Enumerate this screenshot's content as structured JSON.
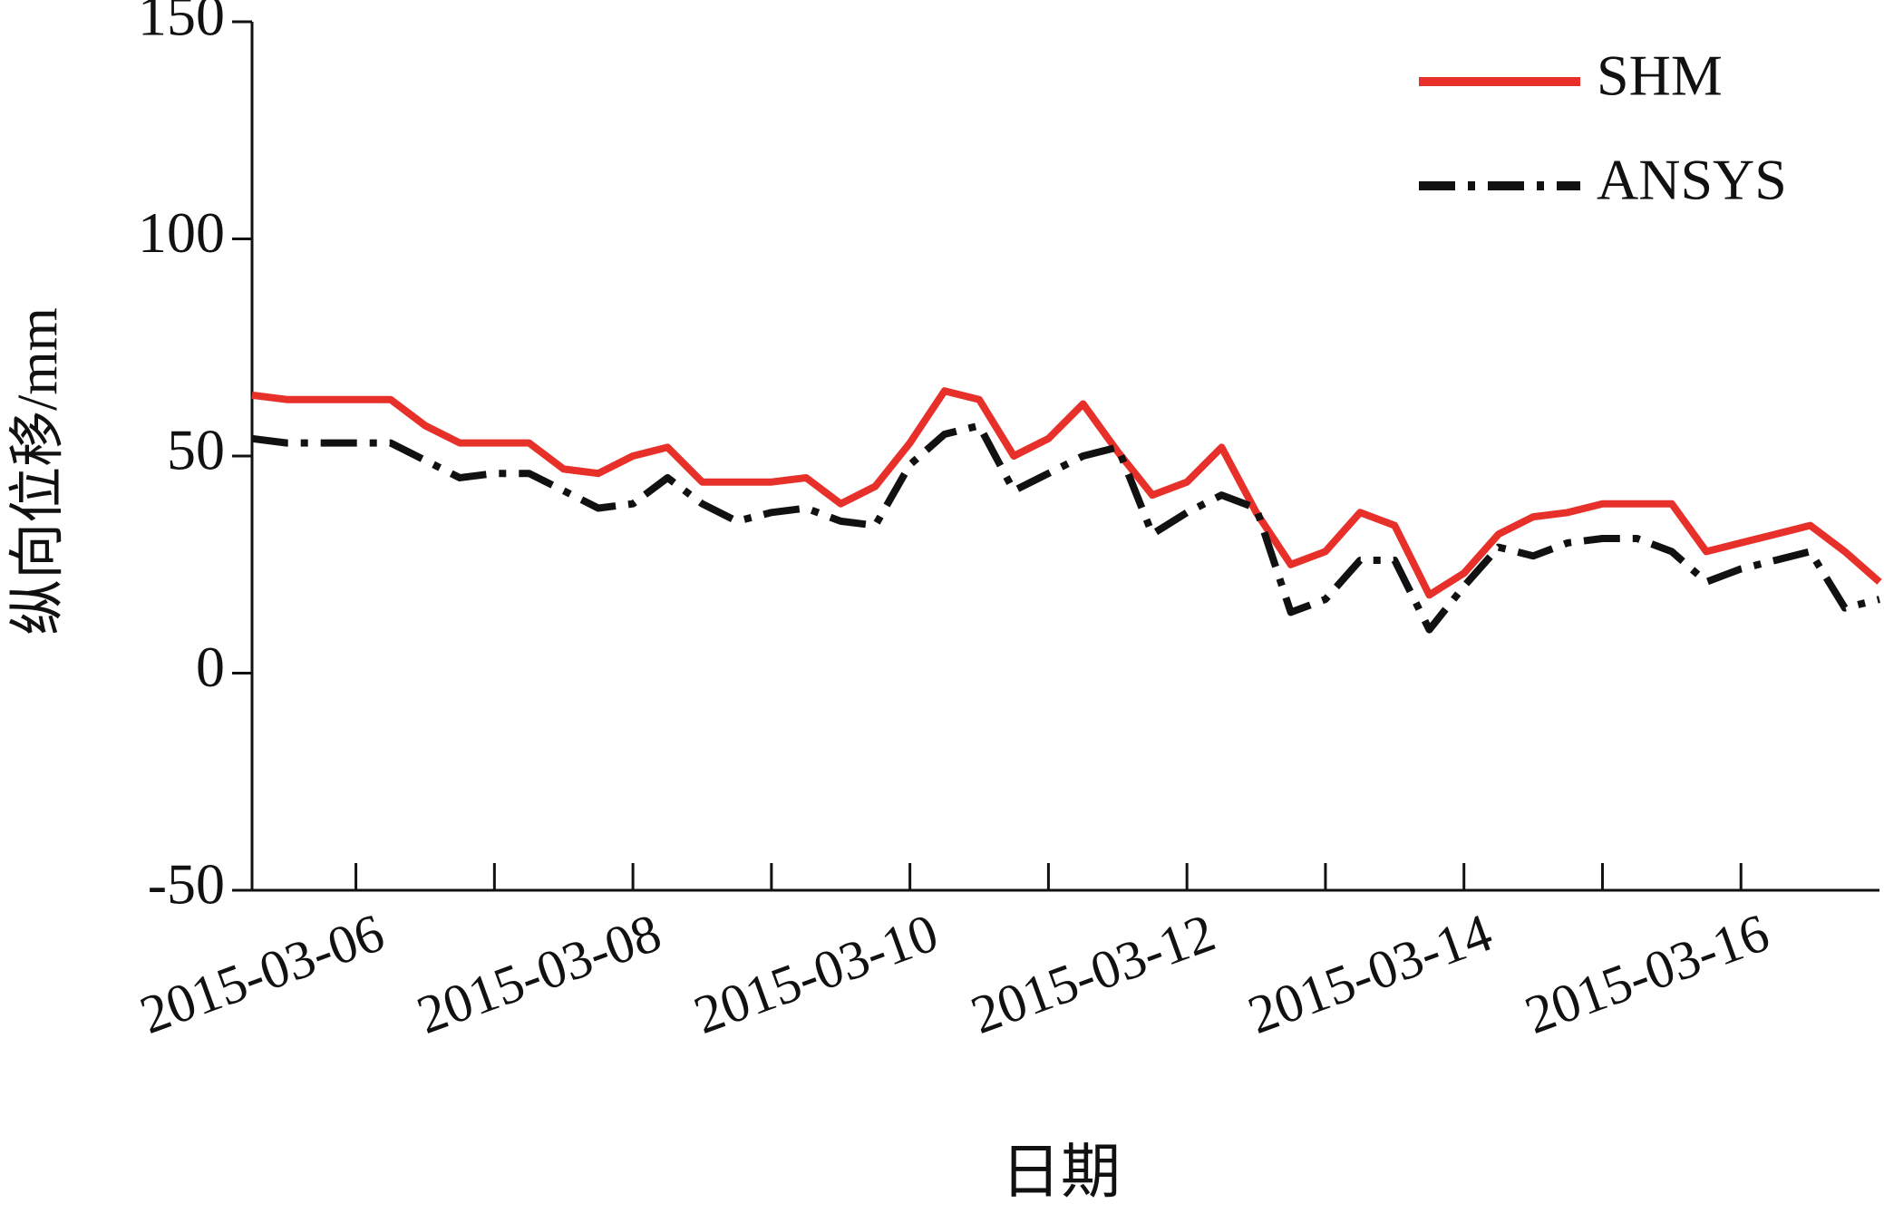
{
  "chart_data": {
    "type": "line",
    "x_label": "日期",
    "y_label": "纵向位移/mm",
    "x": [
      "2015-03-05 06:00",
      "2015-03-05 12:00",
      "2015-03-05 18:00",
      "2015-03-06 00:00",
      "2015-03-06 06:00",
      "2015-03-06 12:00",
      "2015-03-06 18:00",
      "2015-03-07 00:00",
      "2015-03-07 06:00",
      "2015-03-07 12:00",
      "2015-03-07 18:00",
      "2015-03-08 00:00",
      "2015-03-08 06:00",
      "2015-03-08 12:00",
      "2015-03-08 18:00",
      "2015-03-09 00:00",
      "2015-03-09 06:00",
      "2015-03-09 12:00",
      "2015-03-09 18:00",
      "2015-03-10 00:00",
      "2015-03-10 06:00",
      "2015-03-10 12:00",
      "2015-03-10 18:00",
      "2015-03-11 00:00",
      "2015-03-11 06:00",
      "2015-03-11 12:00",
      "2015-03-11 18:00",
      "2015-03-12 00:00",
      "2015-03-12 06:00",
      "2015-03-12 12:00",
      "2015-03-12 18:00",
      "2015-03-13 00:00",
      "2015-03-13 06:00",
      "2015-03-13 12:00",
      "2015-03-13 18:00",
      "2015-03-14 00:00",
      "2015-03-14 06:00",
      "2015-03-14 12:00",
      "2015-03-14 18:00",
      "2015-03-15 00:00",
      "2015-03-15 06:00",
      "2015-03-15 12:00",
      "2015-03-15 18:00",
      "2015-03-16 00:00",
      "2015-03-16 06:00",
      "2015-03-16 12:00",
      "2015-03-16 18:00",
      "2015-03-17 00:00"
    ],
    "series": [
      {
        "name": "SHM",
        "color": "#e8302a",
        "dash": "solid",
        "values": [
          64,
          63,
          63,
          63,
          63,
          57,
          53,
          53,
          53,
          47,
          46,
          50,
          52,
          44,
          44,
          44,
          45,
          39,
          43,
          53,
          65,
          63,
          50,
          54,
          62,
          51,
          41,
          44,
          52,
          37,
          25,
          28,
          37,
          34,
          18,
          23,
          32,
          36,
          37,
          39,
          39,
          39,
          28,
          30,
          32,
          34,
          28,
          21
        ]
      },
      {
        "name": "ANSYS",
        "color": "#111111",
        "dash": "dashdot",
        "values": [
          54,
          53,
          53,
          53,
          53,
          49,
          45,
          46,
          46,
          42,
          38,
          39,
          45,
          39,
          35,
          37,
          38,
          35,
          34,
          48,
          55,
          57,
          42,
          46,
          50,
          52,
          32,
          37,
          41,
          38,
          14,
          17,
          26,
          26,
          10,
          20,
          29,
          27,
          30,
          31,
          31,
          28,
          21,
          24,
          26,
          28,
          15,
          17
        ]
      }
    ],
    "xlim": [
      "2015-03-05 06:00",
      "2015-03-17 00:00"
    ],
    "xticks": [
      "2015-03-06",
      {
        "value": "2015-03-07",
        "label": null
      },
      "2015-03-08",
      {
        "value": "2015-03-09",
        "label": null
      },
      "2015-03-10",
      {
        "value": "2015-03-11",
        "label": null
      },
      "2015-03-12",
      {
        "value": "2015-03-13",
        "label": null
      },
      "2015-03-14",
      {
        "value": "2015-03-15",
        "label": null
      },
      "2015-03-16"
    ],
    "ylim": [
      -50,
      150
    ],
    "yticks": [
      -50,
      0,
      50,
      100,
      150
    ],
    "legend": "upper right"
  }
}
